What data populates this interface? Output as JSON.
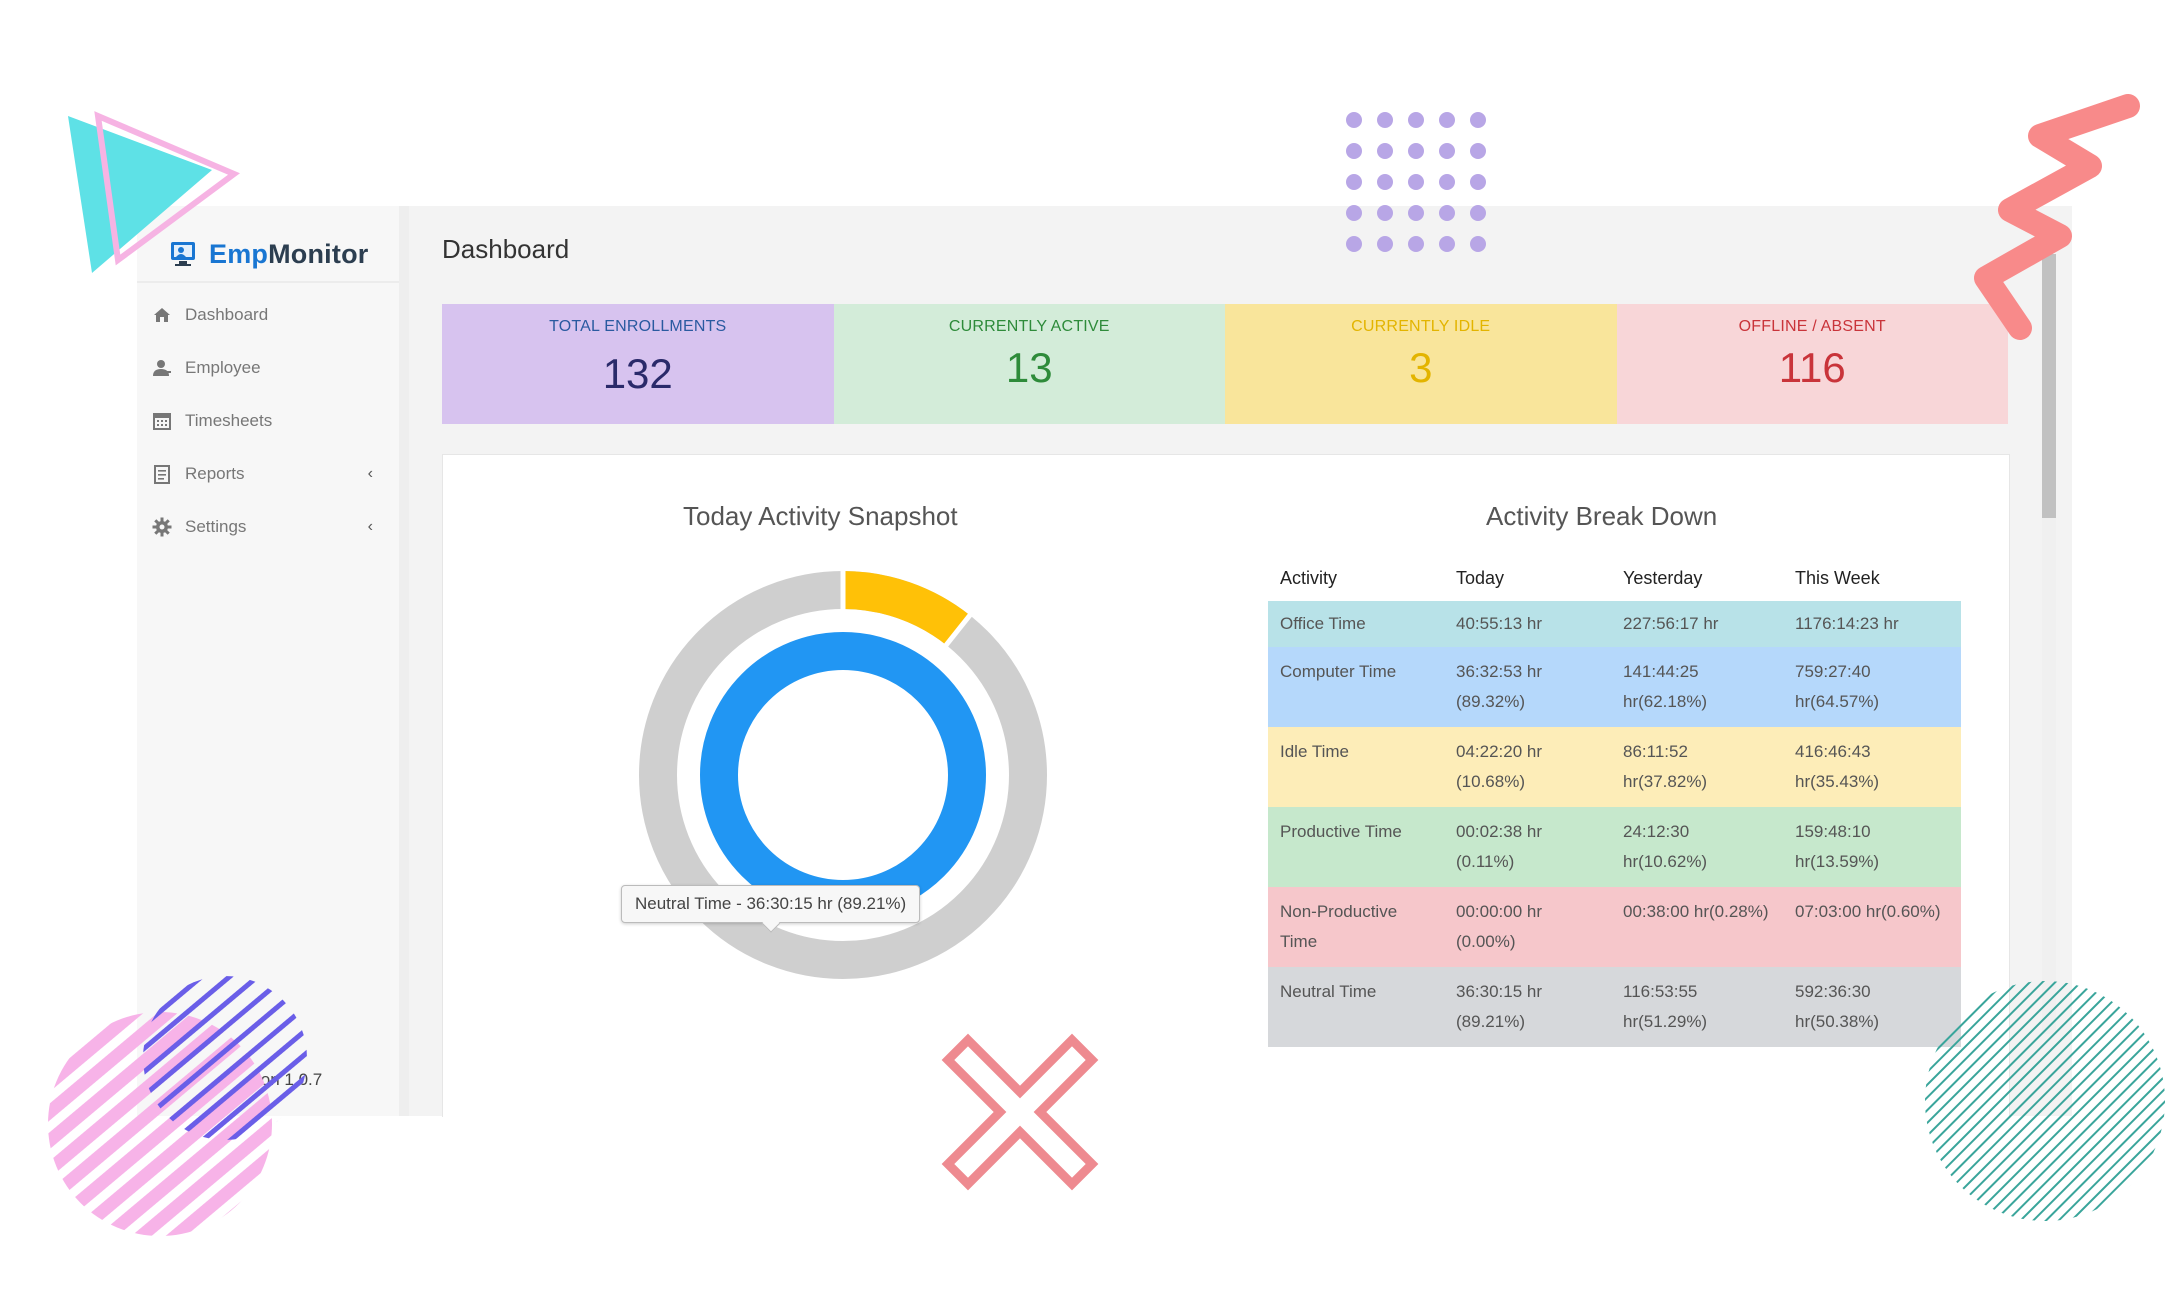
{
  "brand": {
    "name_part1": "Emp",
    "name_part2": "Monitor"
  },
  "sidebar": {
    "items": [
      {
        "label": "Dashboard",
        "icon": "home-icon"
      },
      {
        "label": "Employee",
        "icon": "user-icon"
      },
      {
        "label": "Timesheets",
        "icon": "calendar-icon"
      },
      {
        "label": "Reports",
        "icon": "report-icon",
        "chevron": "‹"
      },
      {
        "label": "Settings",
        "icon": "gear-icon",
        "chevron": "‹"
      }
    ],
    "version": "ion 1.0.7"
  },
  "page": {
    "title": "Dashboard"
  },
  "stats": [
    {
      "label": "TOTAL ENROLLMENTS",
      "value": "132"
    },
    {
      "label": "CURRENTLY ACTIVE",
      "value": "13"
    },
    {
      "label": "CURRENTLY IDLE",
      "value": "3"
    },
    {
      "label": "OFFLINE / ABSENT",
      "value": "116"
    }
  ],
  "snapshot": {
    "title": "Today Activity Snapshot",
    "tooltip": "Neutral Time - 36:30:15 hr (89.21%)",
    "outer_ring": {
      "highlight_fraction": 0.1068,
      "highlight_color": "#ffc107",
      "base_color": "#cfcfcf"
    },
    "inner_ring": {
      "color": "#2196f3"
    }
  },
  "breakdown": {
    "title": "Activity Break Down",
    "headers": [
      "Activity",
      "Today",
      "Yesterday",
      "This Week"
    ],
    "rows": [
      {
        "activity": "Office Time",
        "today": "40:55:13 hr",
        "yesterday": "227:56:17 hr",
        "week": "1176:14:23 hr"
      },
      {
        "activity": "Computer Time",
        "today": "36:32:53 hr (89.32%)",
        "yesterday": "141:44:25 hr(62.18%)",
        "week": "759:27:40 hr(64.57%)"
      },
      {
        "activity": "Idle Time",
        "today": "04:22:20 hr (10.68%)",
        "yesterday": "86:11:52 hr(37.82%)",
        "week": "416:46:43 hr(35.43%)"
      },
      {
        "activity": "Productive Time",
        "today": "00:02:38 hr (0.11%)",
        "yesterday": "24:12:30 hr(10.62%)",
        "week": "159:48:10 hr(13.59%)"
      },
      {
        "activity": "Non-Productive Time",
        "today": "00:00:00 hr (0.00%)",
        "yesterday": "00:38:00 hr(0.28%)",
        "week": "07:03:00 hr(0.60%)"
      },
      {
        "activity": "Neutral Time",
        "today": "36:30:15 hr (89.21%)",
        "yesterday": "116:53:55 hr(51.29%)",
        "week": "592:36:30 hr(50.38%)"
      }
    ]
  }
}
